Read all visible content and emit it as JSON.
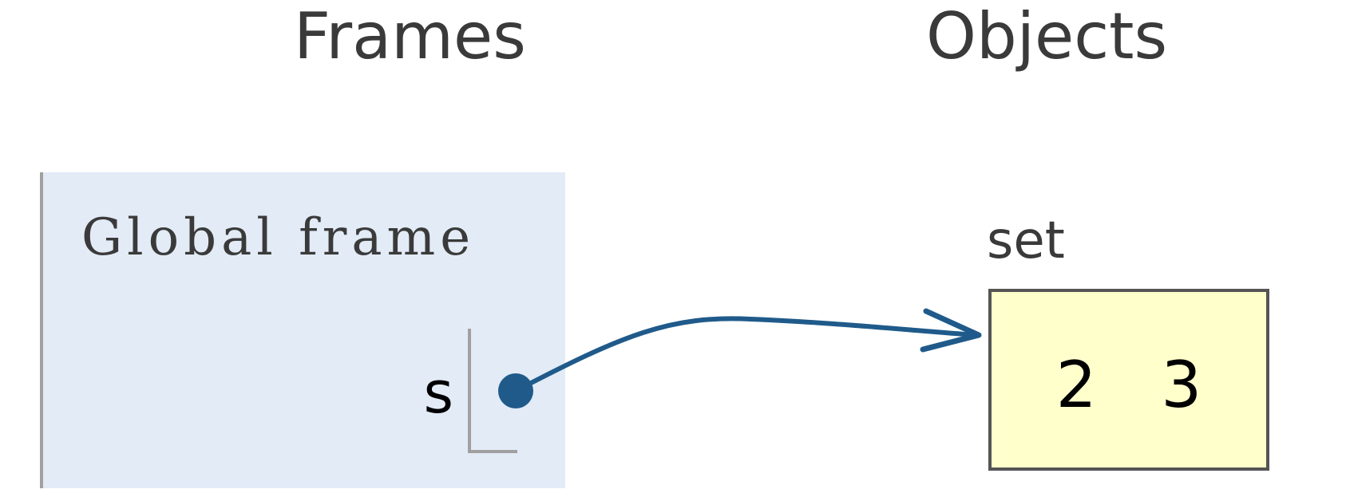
{
  "headings": {
    "frames": "Frames",
    "objects": "Objects"
  },
  "global_frame": {
    "title": "Global frame",
    "variables": [
      {
        "name": "s"
      }
    ]
  },
  "objects": [
    {
      "type": "set",
      "elements": [
        "2",
        "3"
      ]
    }
  ],
  "colors": {
    "frame_bg": "#e2ebf6",
    "object_bg": "#ffffcc",
    "pointer": "#1f5a8a"
  }
}
